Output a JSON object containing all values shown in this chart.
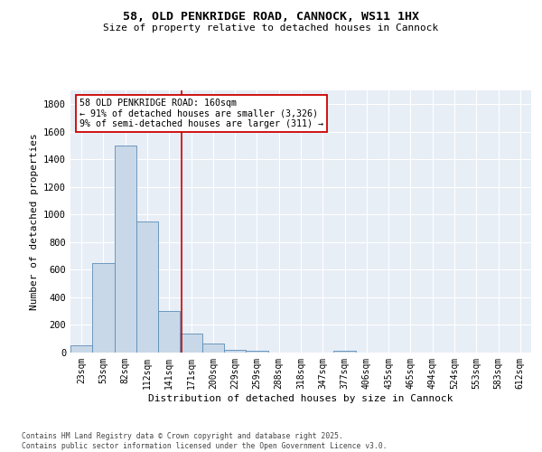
{
  "title1": "58, OLD PENKRIDGE ROAD, CANNOCK, WS11 1HX",
  "title2": "Size of property relative to detached houses in Cannock",
  "xlabel": "Distribution of detached houses by size in Cannock",
  "ylabel": "Number of detached properties",
  "bin_labels": [
    "23sqm",
    "53sqm",
    "82sqm",
    "112sqm",
    "141sqm",
    "171sqm",
    "200sqm",
    "229sqm",
    "259sqm",
    "288sqm",
    "318sqm",
    "347sqm",
    "377sqm",
    "406sqm",
    "435sqm",
    "465sqm",
    "494sqm",
    "524sqm",
    "553sqm",
    "583sqm",
    "612sqm"
  ],
  "bar_heights": [
    50,
    650,
    1500,
    950,
    300,
    135,
    65,
    20,
    10,
    0,
    0,
    0,
    15,
    0,
    0,
    0,
    0,
    0,
    0,
    0,
    0
  ],
  "bar_color": "#c8d8e8",
  "bar_edge_color": "#5b8db8",
  "vline_color": "#cc0000",
  "annotation_text": "58 OLD PENKRIDGE ROAD: 160sqm\n← 91% of detached houses are smaller (3,326)\n9% of semi-detached houses are larger (311) →",
  "annotation_box_color": "#ffffff",
  "annotation_box_edge": "#cc0000",
  "ylim": [
    0,
    1900
  ],
  "yticks": [
    0,
    200,
    400,
    600,
    800,
    1000,
    1200,
    1400,
    1600,
    1800
  ],
  "bg_color": "#e8eef6",
  "footer1": "Contains HM Land Registry data © Crown copyright and database right 2025.",
  "footer2": "Contains public sector information licensed under the Open Government Licence v3.0."
}
